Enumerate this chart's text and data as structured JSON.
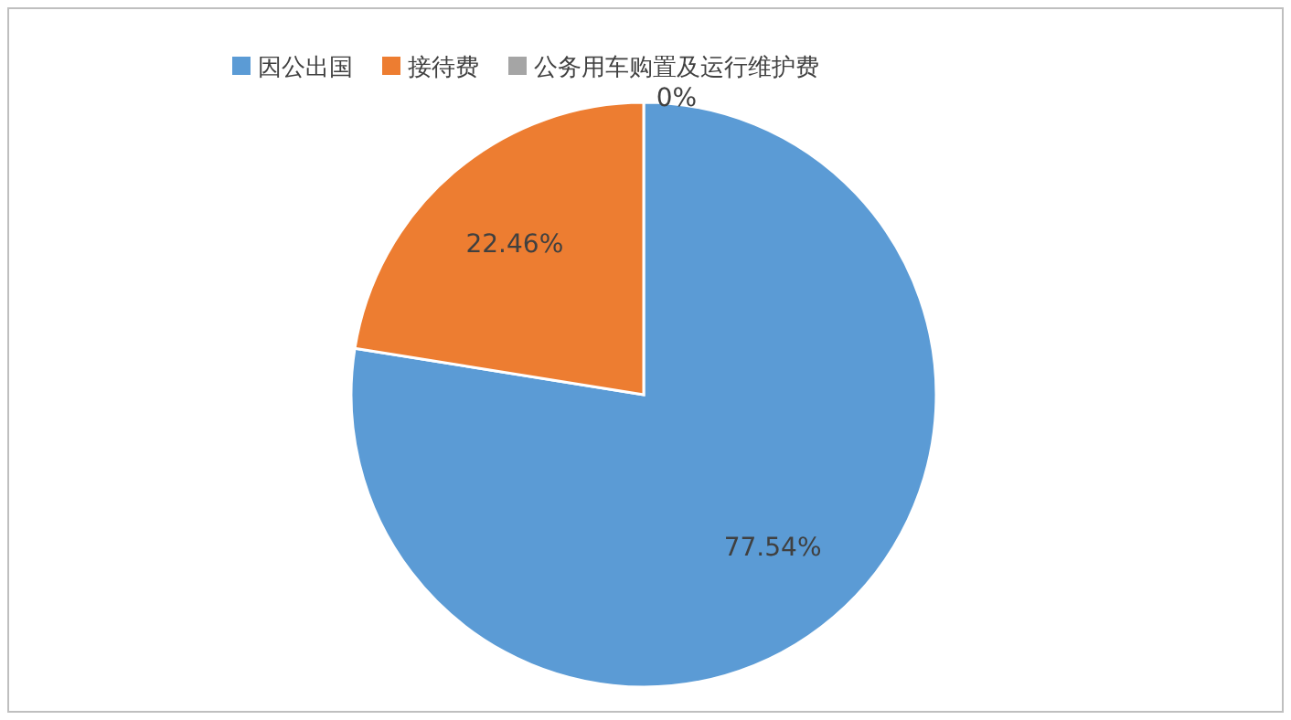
{
  "chart_data": {
    "type": "pie",
    "categories": [
      "因公出国",
      "接待费",
      "公务用车购置及运行维护费"
    ],
    "values": [
      77.54,
      22.46,
      0
    ],
    "colors": [
      "#5b9bd5",
      "#ed7d31",
      "#a5a5a5"
    ],
    "value_labels": [
      "77.54%",
      "22.46%",
      "0%"
    ],
    "legend": "top"
  }
}
